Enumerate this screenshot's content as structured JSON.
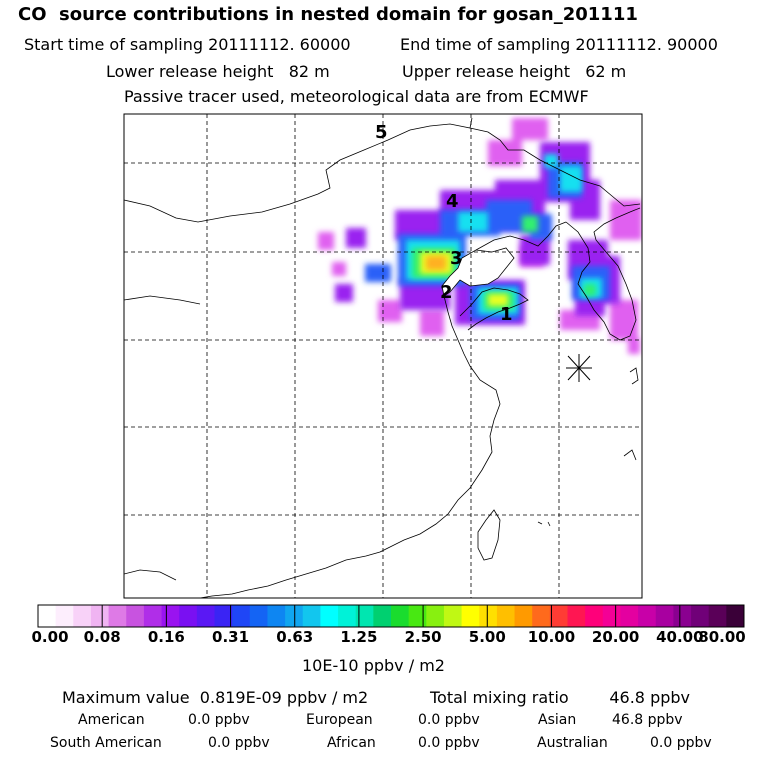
{
  "header": {
    "title": "CO  source contributions in nested domain for gosan_201111",
    "start_time": "Start time of sampling 20111112. 60000",
    "end_time": "End time of sampling 20111112. 90000",
    "lower_height": "Lower release height   82 m",
    "upper_height": "Upper release height   62 m",
    "tracer_note": "Passive tracer used, meteorological data are from ECMWF"
  },
  "colors": {
    "bar": [
      "#ffffff",
      "#fdeefd",
      "#f8d2f8",
      "#f0b4f2",
      "#de7ae6",
      "#c853e0",
      "#b02ee8",
      "#9a13f0",
      "#7a10f2",
      "#5a18f4",
      "#3a24f4",
      "#1f46f6",
      "#1464f4",
      "#0e86f2",
      "#10a6f0",
      "#12c6ee",
      "#00ffff",
      "#00f2d8",
      "#00e6b0",
      "#00d070",
      "#1adc2e",
      "#48e812",
      "#88f010",
      "#c0f814",
      "#ffff00",
      "#ffdf00",
      "#ffbf00",
      "#ff9a00",
      "#ff6a1c",
      "#ff3c34",
      "#ff1652",
      "#ff007a",
      "#f40096",
      "#e400a0",
      "#c800a8",
      "#a800a0",
      "#8a0090",
      "#700078",
      "#5a0058",
      "#3a0038"
    ],
    "plume_low": "#e060f0",
    "plume_mid": "#9a20f0",
    "plume_blue": "#2a60f8",
    "plume_cyan": "#18e0f0",
    "plume_green": "#30f070",
    "plume_yellow": "#e8ff20",
    "plume_orange": "#ffb020"
  },
  "map": {
    "labels": [
      "1",
      "2",
      "3",
      "4",
      "5"
    ],
    "receptor_icon": "receptor-star-icon"
  },
  "chart_data": {
    "type": "heatmap",
    "title": "CO  source contributions in nested domain for gosan_201111",
    "colorbar_ticks": [
      "0.00",
      "0.08",
      "0.16",
      "0.31",
      "0.63",
      "1.25",
      "2.50",
      "5.00",
      "10.00",
      "20.00",
      "40.00",
      "80.00"
    ],
    "units": "10E-10 ppbv / m2",
    "grid": true
  },
  "stats": {
    "maximum": "Maximum value  0.819E-09 ppbv / m2",
    "total": "Total mixing ratio        46.8 ppbv",
    "american_label": "American",
    "american_value": "0.0 ppbv",
    "european_label": "European",
    "european_value": "0.0 ppbv",
    "asian_label": "Asian",
    "asian_value": "46.8 ppbv",
    "south_american_label": "South American",
    "south_american_value": "0.0 ppbv",
    "african_label": "African",
    "african_value": "0.0 ppbv",
    "australian_label": "Australian",
    "australian_value": "0.0 ppbv"
  }
}
